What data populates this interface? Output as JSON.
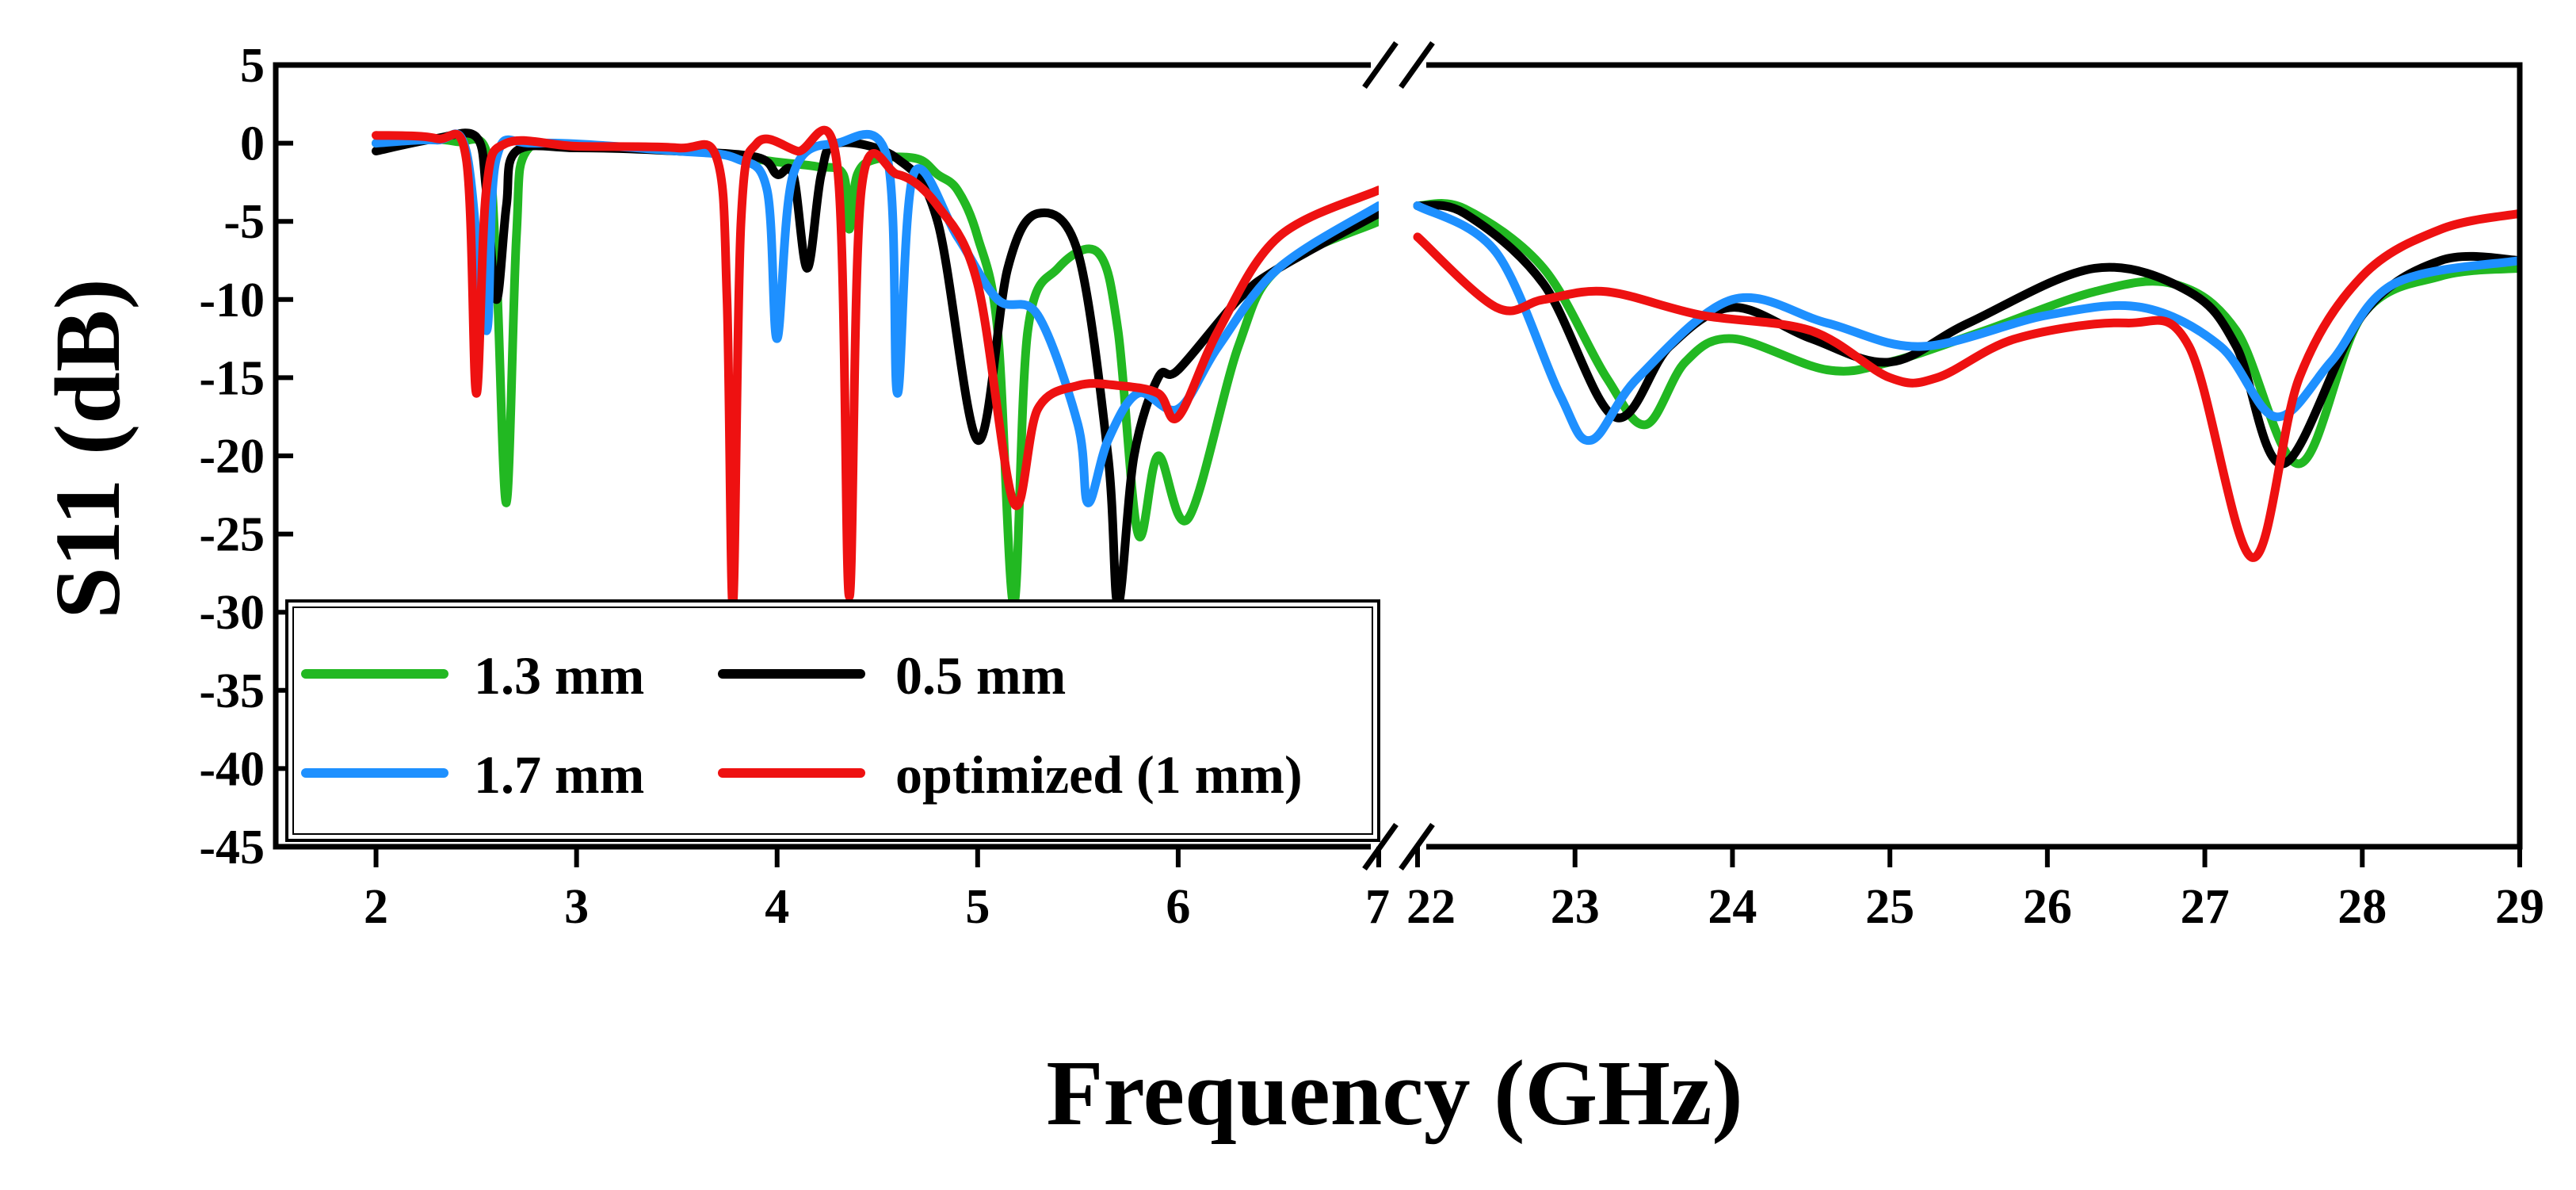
{
  "chart_data": {
    "type": "line",
    "title": "",
    "xlabel": "Frequency (GHz)",
    "ylabel": "S11 (dB)",
    "ylim": [
      -45,
      5
    ],
    "yticks": [
      5,
      0,
      -5,
      -10,
      -15,
      -20,
      -25,
      -30,
      -35,
      -40,
      -45
    ],
    "ytick_labels": [
      "5",
      "0",
      "-5",
      "-10",
      "-15",
      "-20",
      "-25",
      "-30",
      "-35",
      "-40",
      "-45"
    ],
    "x_break": true,
    "panels": [
      {
        "name": "low-band",
        "xlim": [
          1.5,
          7
        ],
        "xticks": [
          2,
          3,
          4,
          5,
          6,
          7
        ],
        "xtick_labels": [
          "2",
          "3",
          "4",
          "5",
          "6",
          "7"
        ]
      },
      {
        "name": "high-band",
        "xlim": [
          22,
          29
        ],
        "xticks": [
          22,
          23,
          24,
          25,
          26,
          27,
          28,
          29
        ],
        "xtick_labels": [
          "22",
          "23",
          "24",
          "25",
          "26",
          "27",
          "28",
          "29"
        ]
      }
    ],
    "legend": {
      "placement": "bottom-left",
      "columns": 2
    },
    "series": [
      {
        "name": "1.3 mm",
        "color": "#22b822",
        "low": [
          [
            2.0,
            0
          ],
          [
            2.2,
            0.3
          ],
          [
            2.4,
            0.1
          ],
          [
            2.55,
            -0.5
          ],
          [
            2.6,
            -8
          ],
          [
            2.65,
            -23
          ],
          [
            2.7,
            -6
          ],
          [
            2.75,
            -0.5
          ],
          [
            3.0,
            -0.2
          ],
          [
            3.5,
            -0.4
          ],
          [
            4.0,
            -1.2
          ],
          [
            4.2,
            -1.5
          ],
          [
            4.33,
            -2
          ],
          [
            4.36,
            -5.5
          ],
          [
            4.4,
            -2
          ],
          [
            4.5,
            -1
          ],
          [
            4.7,
            -1
          ],
          [
            4.8,
            -2
          ],
          [
            4.9,
            -3
          ],
          [
            5.0,
            -6
          ],
          [
            5.1,
            -12
          ],
          [
            5.18,
            -29.5
          ],
          [
            5.25,
            -12
          ],
          [
            5.4,
            -8
          ],
          [
            5.6,
            -7
          ],
          [
            5.7,
            -12
          ],
          [
            5.8,
            -25
          ],
          [
            5.9,
            -20
          ],
          [
            6.05,
            -24
          ],
          [
            6.3,
            -13
          ],
          [
            6.5,
            -8
          ],
          [
            7.0,
            -5
          ]
        ],
        "high": [
          [
            22.0,
            -4
          ],
          [
            22.3,
            -4.2
          ],
          [
            22.8,
            -8
          ],
          [
            23.2,
            -15
          ],
          [
            23.45,
            -18
          ],
          [
            23.7,
            -14
          ],
          [
            24.0,
            -12.5
          ],
          [
            24.6,
            -14.5
          ],
          [
            25.0,
            -14
          ],
          [
            25.6,
            -12
          ],
          [
            26.3,
            -9.5
          ],
          [
            26.8,
            -9
          ],
          [
            27.2,
            -12
          ],
          [
            27.6,
            -20.5
          ],
          [
            28.0,
            -11
          ],
          [
            28.5,
            -8.5
          ],
          [
            29.0,
            -8
          ]
        ]
      },
      {
        "name": "0.5 mm",
        "color": "#000000",
        "low": [
          [
            2.0,
            -0.5
          ],
          [
            2.3,
            0.3
          ],
          [
            2.5,
            0.4
          ],
          [
            2.55,
            -3
          ],
          [
            2.6,
            -10
          ],
          [
            2.65,
            -4
          ],
          [
            2.7,
            -0.5
          ],
          [
            3.0,
            -0.3
          ],
          [
            3.5,
            -0.5
          ],
          [
            3.9,
            -0.9
          ],
          [
            4.0,
            -2
          ],
          [
            4.08,
            -2
          ],
          [
            4.15,
            -8
          ],
          [
            4.22,
            -2
          ],
          [
            4.3,
            0
          ],
          [
            4.6,
            -1
          ],
          [
            4.8,
            -5
          ],
          [
            5.0,
            -19
          ],
          [
            5.15,
            -8
          ],
          [
            5.3,
            -4.5
          ],
          [
            5.5,
            -7
          ],
          [
            5.65,
            -20
          ],
          [
            5.7,
            -29.5
          ],
          [
            5.78,
            -20
          ],
          [
            5.9,
            -15
          ],
          [
            6.0,
            -14.5
          ],
          [
            6.3,
            -10
          ],
          [
            6.5,
            -8
          ],
          [
            7.0,
            -4.5
          ]
        ],
        "high": [
          [
            22.0,
            -4
          ],
          [
            22.3,
            -4.5
          ],
          [
            22.8,
            -9
          ],
          [
            23.25,
            -17.5
          ],
          [
            23.6,
            -13
          ],
          [
            24.0,
            -10.5
          ],
          [
            24.5,
            -12.5
          ],
          [
            25.0,
            -14
          ],
          [
            25.5,
            -11.5
          ],
          [
            26.3,
            -8
          ],
          [
            26.9,
            -9.5
          ],
          [
            27.2,
            -13
          ],
          [
            27.5,
            -20.5
          ],
          [
            28.0,
            -11
          ],
          [
            28.5,
            -7.5
          ],
          [
            29.0,
            -7.5
          ]
        ]
      },
      {
        "name": "1.7 mm",
        "color": "#1e90ff",
        "low": [
          [
            2.0,
            0
          ],
          [
            2.3,
            0.2
          ],
          [
            2.45,
            -0.5
          ],
          [
            2.55,
            -12
          ],
          [
            2.6,
            -1
          ],
          [
            2.8,
            0
          ],
          [
            3.5,
            -0.5
          ],
          [
            3.8,
            -1
          ],
          [
            3.95,
            -3
          ],
          [
            4.0,
            -12.5
          ],
          [
            4.08,
            -2
          ],
          [
            4.3,
            0
          ],
          [
            4.55,
            -1
          ],
          [
            4.6,
            -16
          ],
          [
            4.68,
            -2
          ],
          [
            4.9,
            -6
          ],
          [
            5.1,
            -10
          ],
          [
            5.3,
            -11
          ],
          [
            5.5,
            -18
          ],
          [
            5.55,
            -23
          ],
          [
            5.65,
            -19
          ],
          [
            5.8,
            -16
          ],
          [
            6.0,
            -17
          ],
          [
            6.2,
            -13
          ],
          [
            6.5,
            -8
          ],
          [
            7.0,
            -4
          ]
        ],
        "high": [
          [
            22.0,
            -4
          ],
          [
            22.5,
            -7
          ],
          [
            22.9,
            -16
          ],
          [
            23.1,
            -19
          ],
          [
            23.4,
            -15
          ],
          [
            24.0,
            -10
          ],
          [
            24.6,
            -11.5
          ],
          [
            25.2,
            -13
          ],
          [
            26.0,
            -11
          ],
          [
            26.6,
            -10.5
          ],
          [
            27.1,
            -13
          ],
          [
            27.45,
            -17.5
          ],
          [
            27.8,
            -14
          ],
          [
            28.2,
            -9
          ],
          [
            29.0,
            -7.5
          ]
        ]
      },
      {
        "name": "optimized (1 mm)",
        "color": "#ee1111",
        "low": [
          [
            2.0,
            0.5
          ],
          [
            2.3,
            0.3
          ],
          [
            2.45,
            -1
          ],
          [
            2.5,
            -16
          ],
          [
            2.55,
            -3
          ],
          [
            2.65,
            0
          ],
          [
            3.0,
            -0.2
          ],
          [
            3.5,
            -0.3
          ],
          [
            3.7,
            -1
          ],
          [
            3.75,
            -10
          ],
          [
            3.78,
            -29.5
          ],
          [
            3.82,
            -5
          ],
          [
            3.9,
            0
          ],
          [
            4.1,
            -0.5
          ],
          [
            4.3,
            -1.5
          ],
          [
            4.36,
            -29
          ],
          [
            4.42,
            -3
          ],
          [
            4.6,
            -2
          ],
          [
            4.8,
            -4
          ],
          [
            5.0,
            -9
          ],
          [
            5.18,
            -23
          ],
          [
            5.3,
            -17
          ],
          [
            5.5,
            -15.5
          ],
          [
            5.7,
            -15.5
          ],
          [
            5.9,
            -16
          ],
          [
            6.0,
            -17.5
          ],
          [
            6.2,
            -12
          ],
          [
            6.5,
            -6
          ],
          [
            7.0,
            -3
          ]
        ],
        "high": [
          [
            22.0,
            -6
          ],
          [
            22.5,
            -10.5
          ],
          [
            22.8,
            -10
          ],
          [
            23.2,
            -9.5
          ],
          [
            23.8,
            -11
          ],
          [
            24.5,
            -12
          ],
          [
            25.0,
            -15
          ],
          [
            25.3,
            -15
          ],
          [
            25.8,
            -12.5
          ],
          [
            26.5,
            -11.5
          ],
          [
            26.9,
            -13
          ],
          [
            27.3,
            -26.5
          ],
          [
            27.6,
            -15
          ],
          [
            28.0,
            -8.5
          ],
          [
            28.5,
            -5.5
          ],
          [
            29.0,
            -4.5
          ]
        ]
      }
    ]
  }
}
